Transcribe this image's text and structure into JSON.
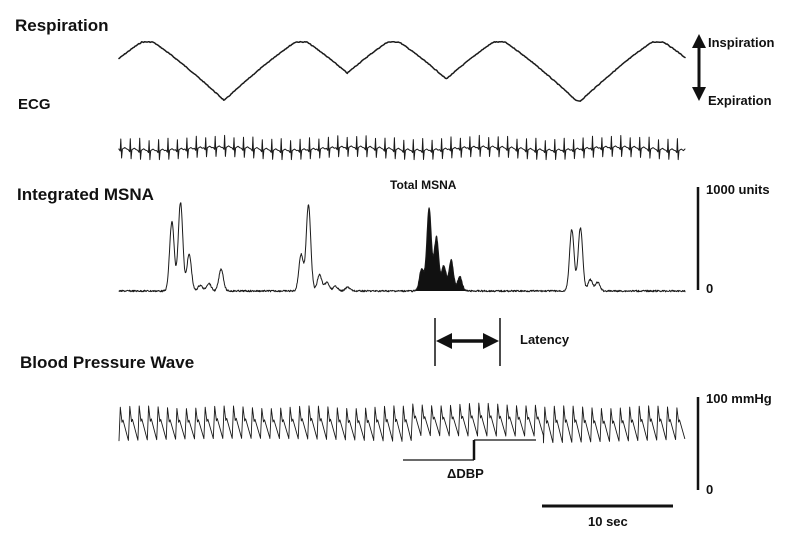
{
  "labels": {
    "respiration": "Respiration",
    "ecg": "ECG",
    "integrated_msna": "Integrated MSNA",
    "total_msna": "Total MSNA",
    "blood_pressure_wave": "Blood Pressure Wave",
    "inspiration": "Inspiration",
    "expiration": "Expiration",
    "latency": "Latency",
    "delta_dbp": "ΔDBP"
  },
  "scale_bars": {
    "msna": {
      "top_label": "1000 units",
      "bottom_label": "0"
    },
    "bp": {
      "top_label": "100 mmHg",
      "bottom_label": "0"
    },
    "time": {
      "label": "10 sec",
      "seconds": 10
    }
  },
  "colors": {
    "trace": "#1a1a1a",
    "background": "#ffffff"
  },
  "chart_data": {
    "type": "line",
    "title": "",
    "time_span_seconds": 46,
    "series": [
      {
        "name": "Respiration",
        "unit": "",
        "breath_cycles": 5,
        "peaks_s": [
          2.3,
          14.8,
          22.3,
          30.9,
          43.8
        ]
      },
      {
        "name": "ECG",
        "beats": 60
      },
      {
        "name": "Integrated MSNA",
        "unit": "units",
        "baseline": 0,
        "bursts": [
          {
            "t_s": 4.3,
            "value": 720,
            "highlighted": false
          },
          {
            "t_s": 5.0,
            "value": 920,
            "highlighted": false
          },
          {
            "t_s": 5.7,
            "value": 380,
            "highlighted": false
          },
          {
            "t_s": 6.6,
            "value": 60,
            "highlighted": false
          },
          {
            "t_s": 7.3,
            "value": 80,
            "highlighted": false
          },
          {
            "t_s": 8.3,
            "value": 230,
            "highlighted": false
          },
          {
            "t_s": 14.8,
            "value": 380,
            "highlighted": false
          },
          {
            "t_s": 15.4,
            "value": 900,
            "highlighted": false
          },
          {
            "t_s": 16.3,
            "value": 170,
            "highlighted": false
          },
          {
            "t_s": 16.9,
            "value": 90,
            "highlighted": false
          },
          {
            "t_s": 17.6,
            "value": 50,
            "highlighted": false
          },
          {
            "t_s": 18.6,
            "value": 40,
            "highlighted": false
          },
          {
            "t_s": 24.6,
            "value": 230,
            "highlighted": true
          },
          {
            "t_s": 25.2,
            "value": 860,
            "highlighted": true
          },
          {
            "t_s": 25.8,
            "value": 560,
            "highlighted": true
          },
          {
            "t_s": 26.4,
            "value": 260,
            "highlighted": true
          },
          {
            "t_s": 27.0,
            "value": 320,
            "highlighted": true
          },
          {
            "t_s": 27.7,
            "value": 150,
            "highlighted": true
          },
          {
            "t_s": 36.8,
            "value": 640,
            "highlighted": false
          },
          {
            "t_s": 37.5,
            "value": 660,
            "highlighted": false
          },
          {
            "t_s": 38.3,
            "value": 120,
            "highlighted": false
          },
          {
            "t_s": 38.9,
            "value": 90,
            "highlighted": false
          }
        ],
        "ylim": [
          0,
          1000
        ]
      },
      {
        "name": "Blood Pressure Wave",
        "unit": "mmHg",
        "ylim": [
          0,
          100
        ],
        "beats": 60,
        "systolic_mmHg": 89,
        "diastolic_before_mmHg": 53,
        "diastolic_after_mmHg": 59
      }
    ],
    "annotations": {
      "latency_s": [
        25.5,
        31.3
      ],
      "delta_dbp_window_s": [
        23.5,
        33.8
      ]
    }
  }
}
